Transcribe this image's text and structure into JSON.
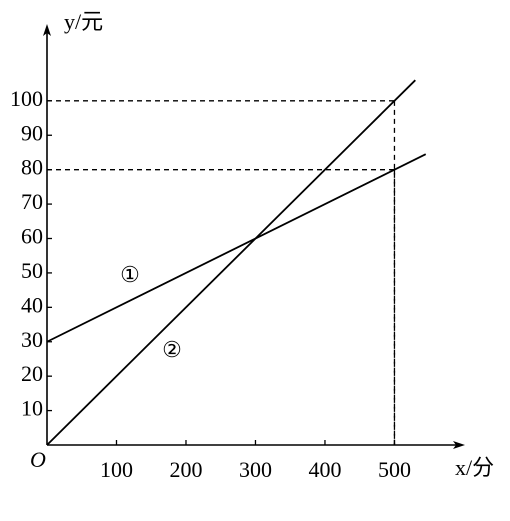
{
  "chart_data": {
    "type": "line",
    "x_label": "x/分",
    "y_label": "y/元",
    "origin_label": "O",
    "xlim": [
      0,
      590
    ],
    "ylim": [
      0,
      120
    ],
    "xticks": [
      100,
      200,
      300,
      400,
      500
    ],
    "yticks": [
      10,
      20,
      30,
      40,
      50,
      60,
      70,
      80,
      90,
      100
    ],
    "series": [
      {
        "name": "①",
        "color": "#000000",
        "x": [
          0,
          545
        ],
        "values": [
          30,
          84.5
        ]
      },
      {
        "name": "②",
        "color": "#000000",
        "x": [
          0,
          530
        ],
        "values": [
          0,
          106
        ]
      }
    ],
    "guides": [
      {
        "x": 500,
        "y": 100
      },
      {
        "x": 500,
        "y": 80
      }
    ]
  }
}
